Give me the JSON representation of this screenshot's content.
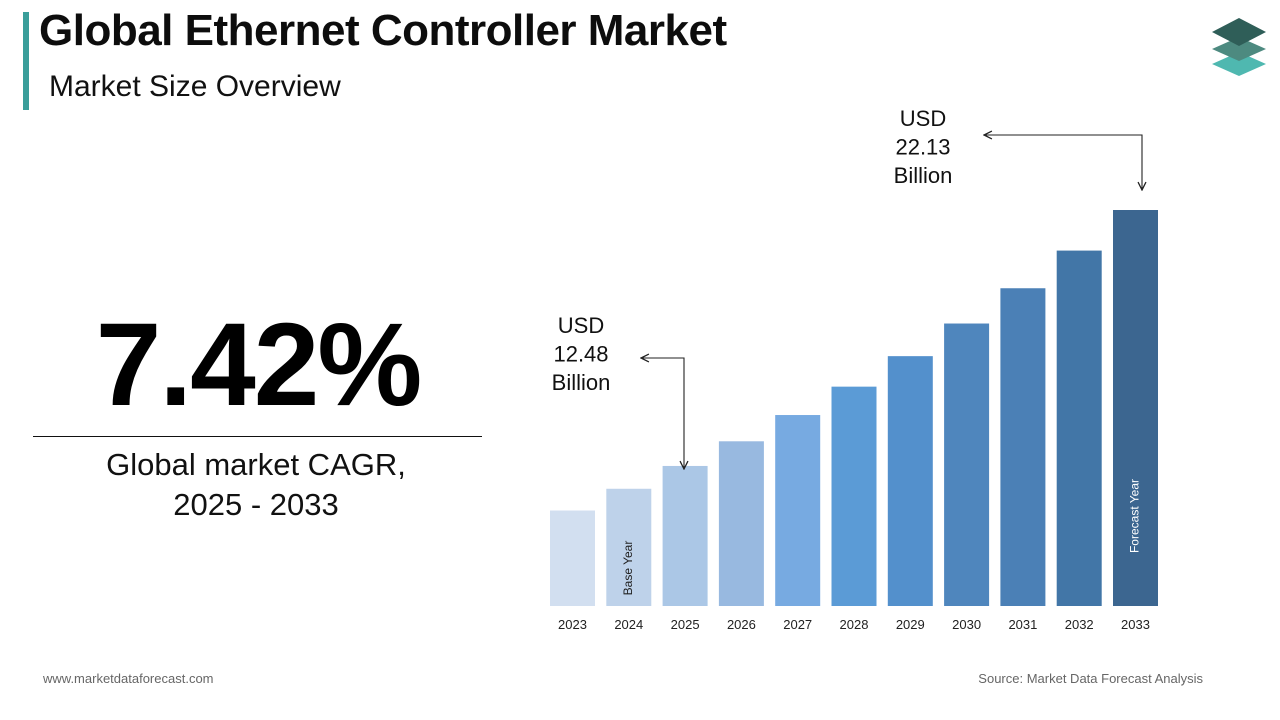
{
  "header": {
    "title": "Global Ethernet Controller Market",
    "subtitle": "Market Size Overview"
  },
  "highlight": {
    "cagr_value": "7.42%",
    "cagr_label_line1": "Global market CAGR,",
    "cagr_label_line2": "2025 - 2033"
  },
  "footer": {
    "website": "www.marketdataforecast.com",
    "source": "Source: Market Data Forecast Analysis"
  },
  "logo_icon": "stacked-layers-icon",
  "colors": {
    "accent": "#3a9e9a",
    "logo_top": "#2f5e58",
    "logo_mid": "#4d8a80",
    "logo_bottom": "#4fb8b0"
  },
  "chart_data": {
    "type": "bar",
    "categories": [
      "2023",
      "2024",
      "2025",
      "2026",
      "2027",
      "2028",
      "2029",
      "2030",
      "2031",
      "2032",
      "2033"
    ],
    "values": [
      10.8,
      11.62,
      12.48,
      13.41,
      14.4,
      15.47,
      16.62,
      17.85,
      19.18,
      20.6,
      22.13
    ],
    "bar_colors": [
      "#d2dff0",
      "#bed2ea",
      "#abc7e6",
      "#98b9e0",
      "#77aae1",
      "#5b9bd6",
      "#5390cc",
      "#4f86bd",
      "#4b80b6",
      "#4276a7",
      "#3c6690"
    ],
    "ylim": [
      7.2,
      22.13
    ],
    "bar_labels": {
      "2024": "Base Year",
      "2033": "Forecast Year"
    },
    "annotations": [
      {
        "category": "2025",
        "lines": [
          "USD",
          "12.48",
          "Billion"
        ]
      },
      {
        "category": "2033",
        "lines": [
          "USD",
          "22.13",
          "Billion"
        ]
      }
    ]
  }
}
